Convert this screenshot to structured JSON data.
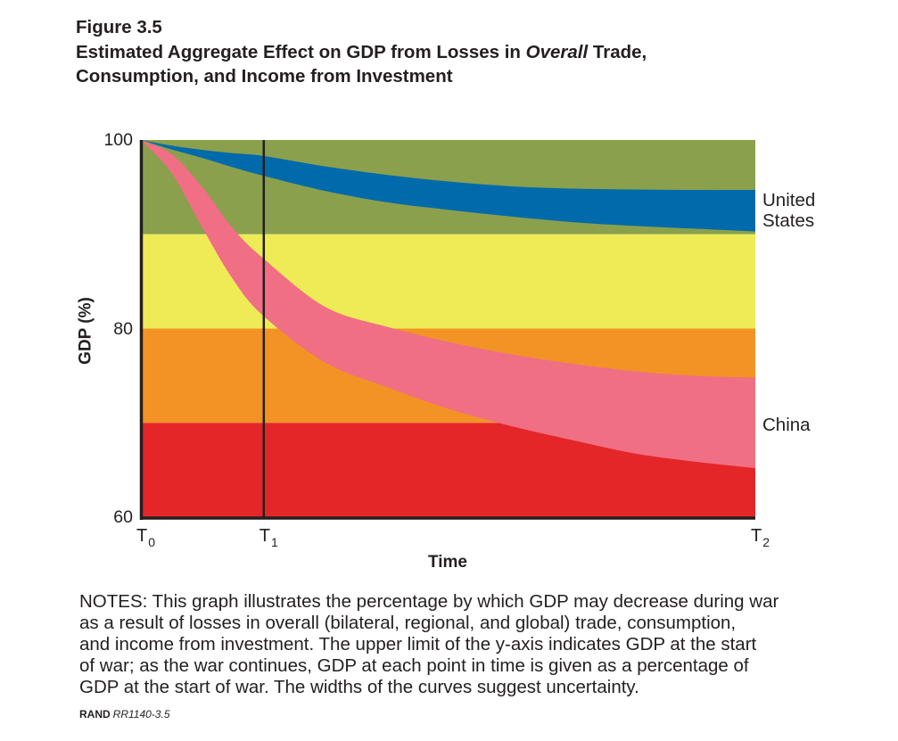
{
  "figure": {
    "label": "Figure 3.5",
    "title_line1_pre": "Estimated Aggregate Effect on GDP from Losses in ",
    "title_line1_em": "Overall",
    "title_line1_post": " Trade,",
    "title_line2": "Consumption, and Income from Investment"
  },
  "notes": {
    "lines": [
      "NOTES: This graph illustrates the percentage by which GDP may decrease during war",
      "as a result of losses in overall (bilateral, regional, and global) trade, consumption,",
      "and income from investment. The upper limit of the y-axis indicates GDP at the start",
      "of war; as the war continues, GDP at each point in time is given as a percentage of",
      "GDP at the start of war. The widths of the curves suggest uncertainty."
    ]
  },
  "source": {
    "org": "RAND",
    "id": "RR1140-3.5"
  },
  "chart_data": {
    "type": "area",
    "title": "Estimated Aggregate Effect on GDP from Losses in Overall Trade, Consumption, and Income from Investment",
    "xlabel": "Time",
    "ylabel": "GDP (%)",
    "xlim": [
      0,
      1
    ],
    "ylim": [
      60,
      100
    ],
    "grid": false,
    "legend": "direct labels at right",
    "x_ticks": [
      {
        "label": "T",
        "sub": "0",
        "value": 0
      },
      {
        "label": "T",
        "sub": "1",
        "value": 0.2
      },
      {
        "label": "T",
        "sub": "2",
        "value": 1
      }
    ],
    "y_ticks": [
      {
        "label": "100",
        "value": 100
      },
      {
        "label": "80",
        "value": 80
      },
      {
        "label": "60",
        "value": 60
      }
    ],
    "background_bands": [
      {
        "from": 90,
        "to": 100,
        "color": "#8aa04c"
      },
      {
        "from": 80,
        "to": 90,
        "color": "#eeeb56"
      },
      {
        "from": 70,
        "to": 80,
        "color": "#f39325"
      },
      {
        "from": 60,
        "to": 70,
        "color": "#e42629"
      }
    ],
    "reference_lines": [
      {
        "x": 0.2,
        "label": "T1",
        "color": "#231f20"
      }
    ],
    "x": [
      0,
      0.05,
      0.1,
      0.15,
      0.2,
      0.3,
      0.4,
      0.5,
      0.6,
      0.7,
      0.8,
      0.9,
      1.0
    ],
    "series": [
      {
        "name": "United States",
        "label_lines": [
          "United",
          "States"
        ],
        "color": "#006aab",
        "upper": [
          100,
          99.4,
          98.95,
          98.6,
          98.3,
          97.2,
          96.3,
          95.6,
          95.1,
          94.85,
          94.75,
          94.7,
          94.7
        ],
        "lower": [
          100,
          99.0,
          98.1,
          97.1,
          96.2,
          94.6,
          93.4,
          92.6,
          91.9,
          91.3,
          90.9,
          90.6,
          90.3
        ]
      },
      {
        "name": "China",
        "label_lines": [
          "China"
        ],
        "color": "#f06f84",
        "upper": [
          100,
          98.5,
          95.0,
          90.6,
          87.4,
          82.3,
          80.2,
          78.6,
          77.3,
          76.3,
          75.5,
          75.0,
          74.8
        ],
        "lower": [
          100,
          96.5,
          90.7,
          85.2,
          81.3,
          76.4,
          73.8,
          71.5,
          69.7,
          68.2,
          66.8,
          65.9,
          65.2
        ]
      }
    ]
  }
}
